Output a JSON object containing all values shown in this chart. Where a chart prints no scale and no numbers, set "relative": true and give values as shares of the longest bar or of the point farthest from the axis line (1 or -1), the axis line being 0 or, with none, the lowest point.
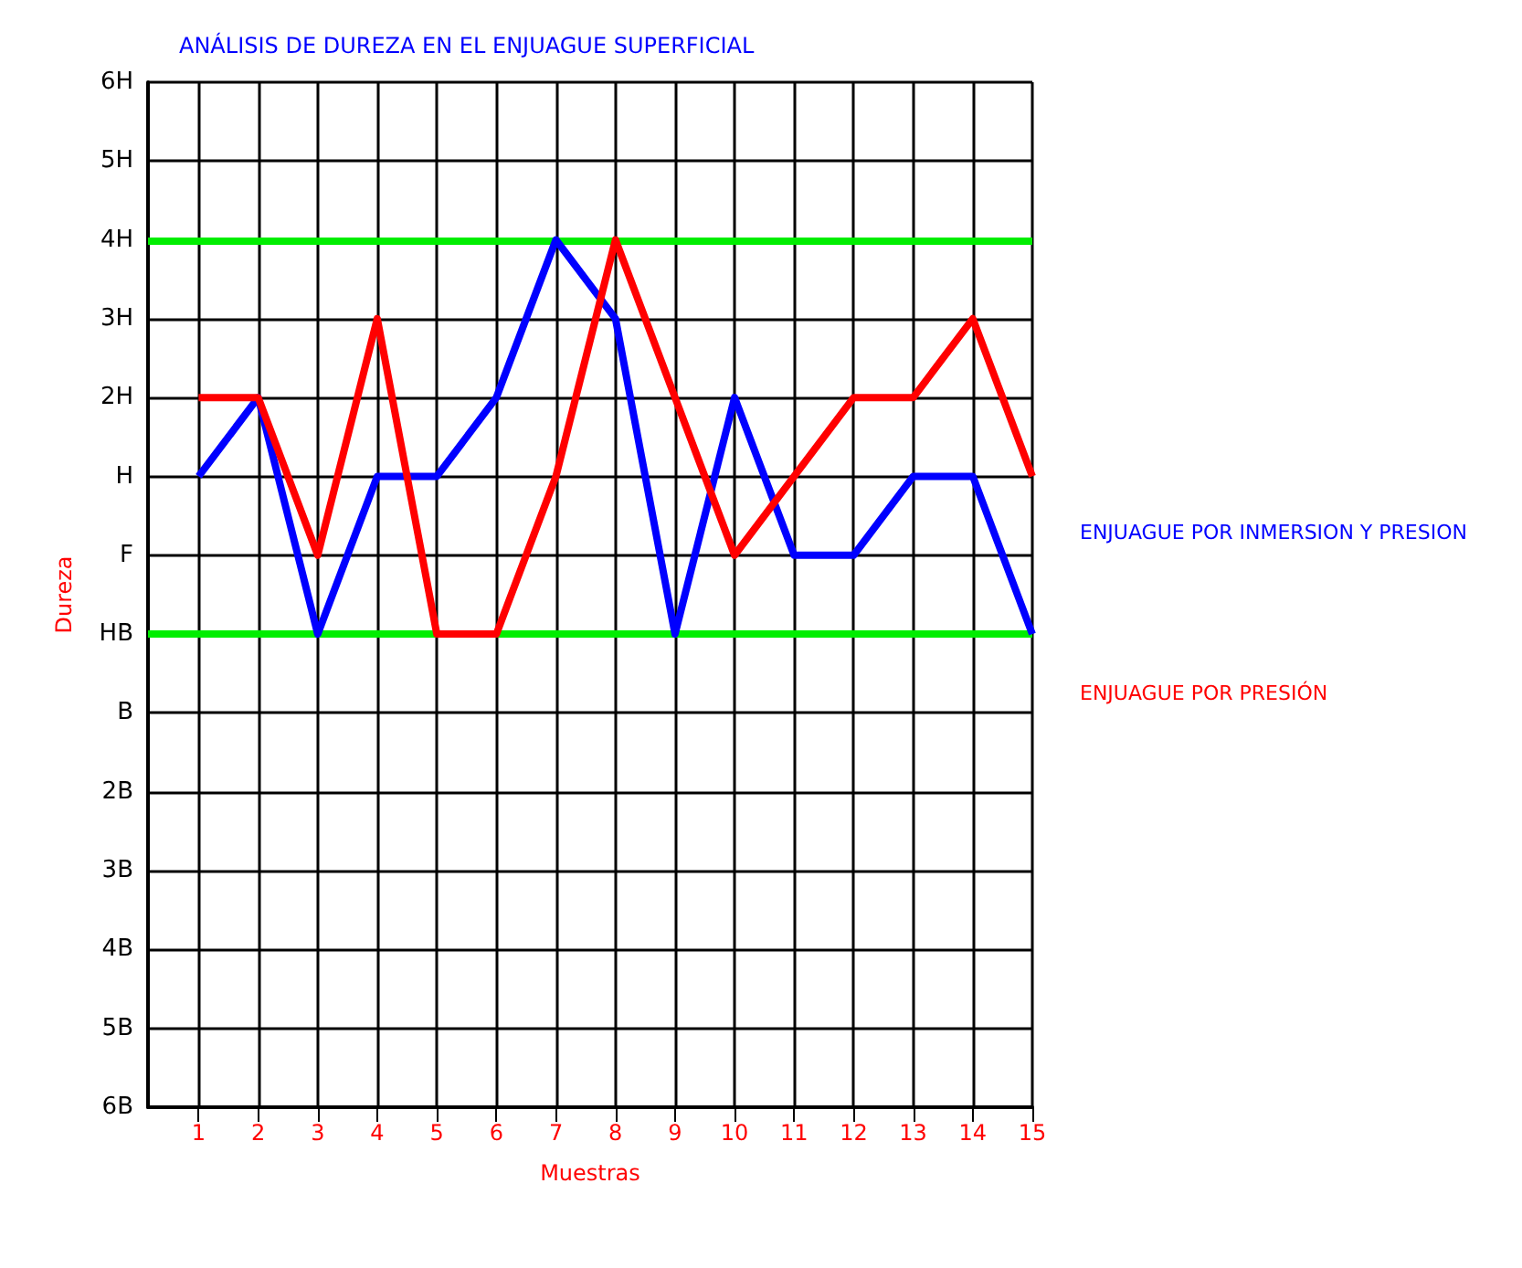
{
  "chart_data": {
    "type": "line",
    "title": "ANÁLISIS DE DUREZA EN EL ENJUAGUE SUPERFICIAL",
    "xlabel": "Muestras",
    "ylabel": "Dureza",
    "relative": true,
    "x": [
      1,
      2,
      3,
      4,
      5,
      6,
      7,
      8,
      9,
      10,
      11,
      12,
      13,
      14,
      15
    ],
    "xlim": [
      0.15,
      15
    ],
    "xticks": [
      1,
      2,
      3,
      4,
      5,
      6,
      7,
      8,
      9,
      10,
      11,
      12,
      13,
      14,
      15
    ],
    "y_categories": [
      "6H",
      "5H",
      "4H",
      "3H",
      "2H",
      "H",
      "F",
      "HB",
      "B",
      "2B",
      "3B",
      "4B",
      "5B",
      "6B"
    ],
    "series": [
      {
        "name": "ENJUAGUE POR INMERSION Y PRESION",
        "color": "#0000ff",
        "values": [
          0.7273,
          0.8182,
          0.5455,
          0.7273,
          0.7273,
          0.8182,
          1,
          0.9091,
          0.5455,
          0.8182,
          0.6364,
          0.6364,
          0.7273,
          0.7273,
          0.5455
        ]
      },
      {
        "name": "ENJUAGUE POR PRESIÓN",
        "color": "#ff0000",
        "values": [
          0.8182,
          0.8182,
          0.6364,
          0.9091,
          0.5455,
          0.5455,
          0.7273,
          1,
          0.8182,
          0.6364,
          0.7273,
          0.8182,
          0.8182,
          0.9091,
          0.7273
        ]
      }
    ],
    "ref_lines": [
      {
        "axis": "y",
        "value": 1,
        "color": "#00ee00"
      },
      {
        "axis": "y",
        "value": 0.5455,
        "color": "#00ee00"
      }
    ],
    "grid": true,
    "legend": false,
    "marker": "none",
    "line_style": "solid"
  }
}
